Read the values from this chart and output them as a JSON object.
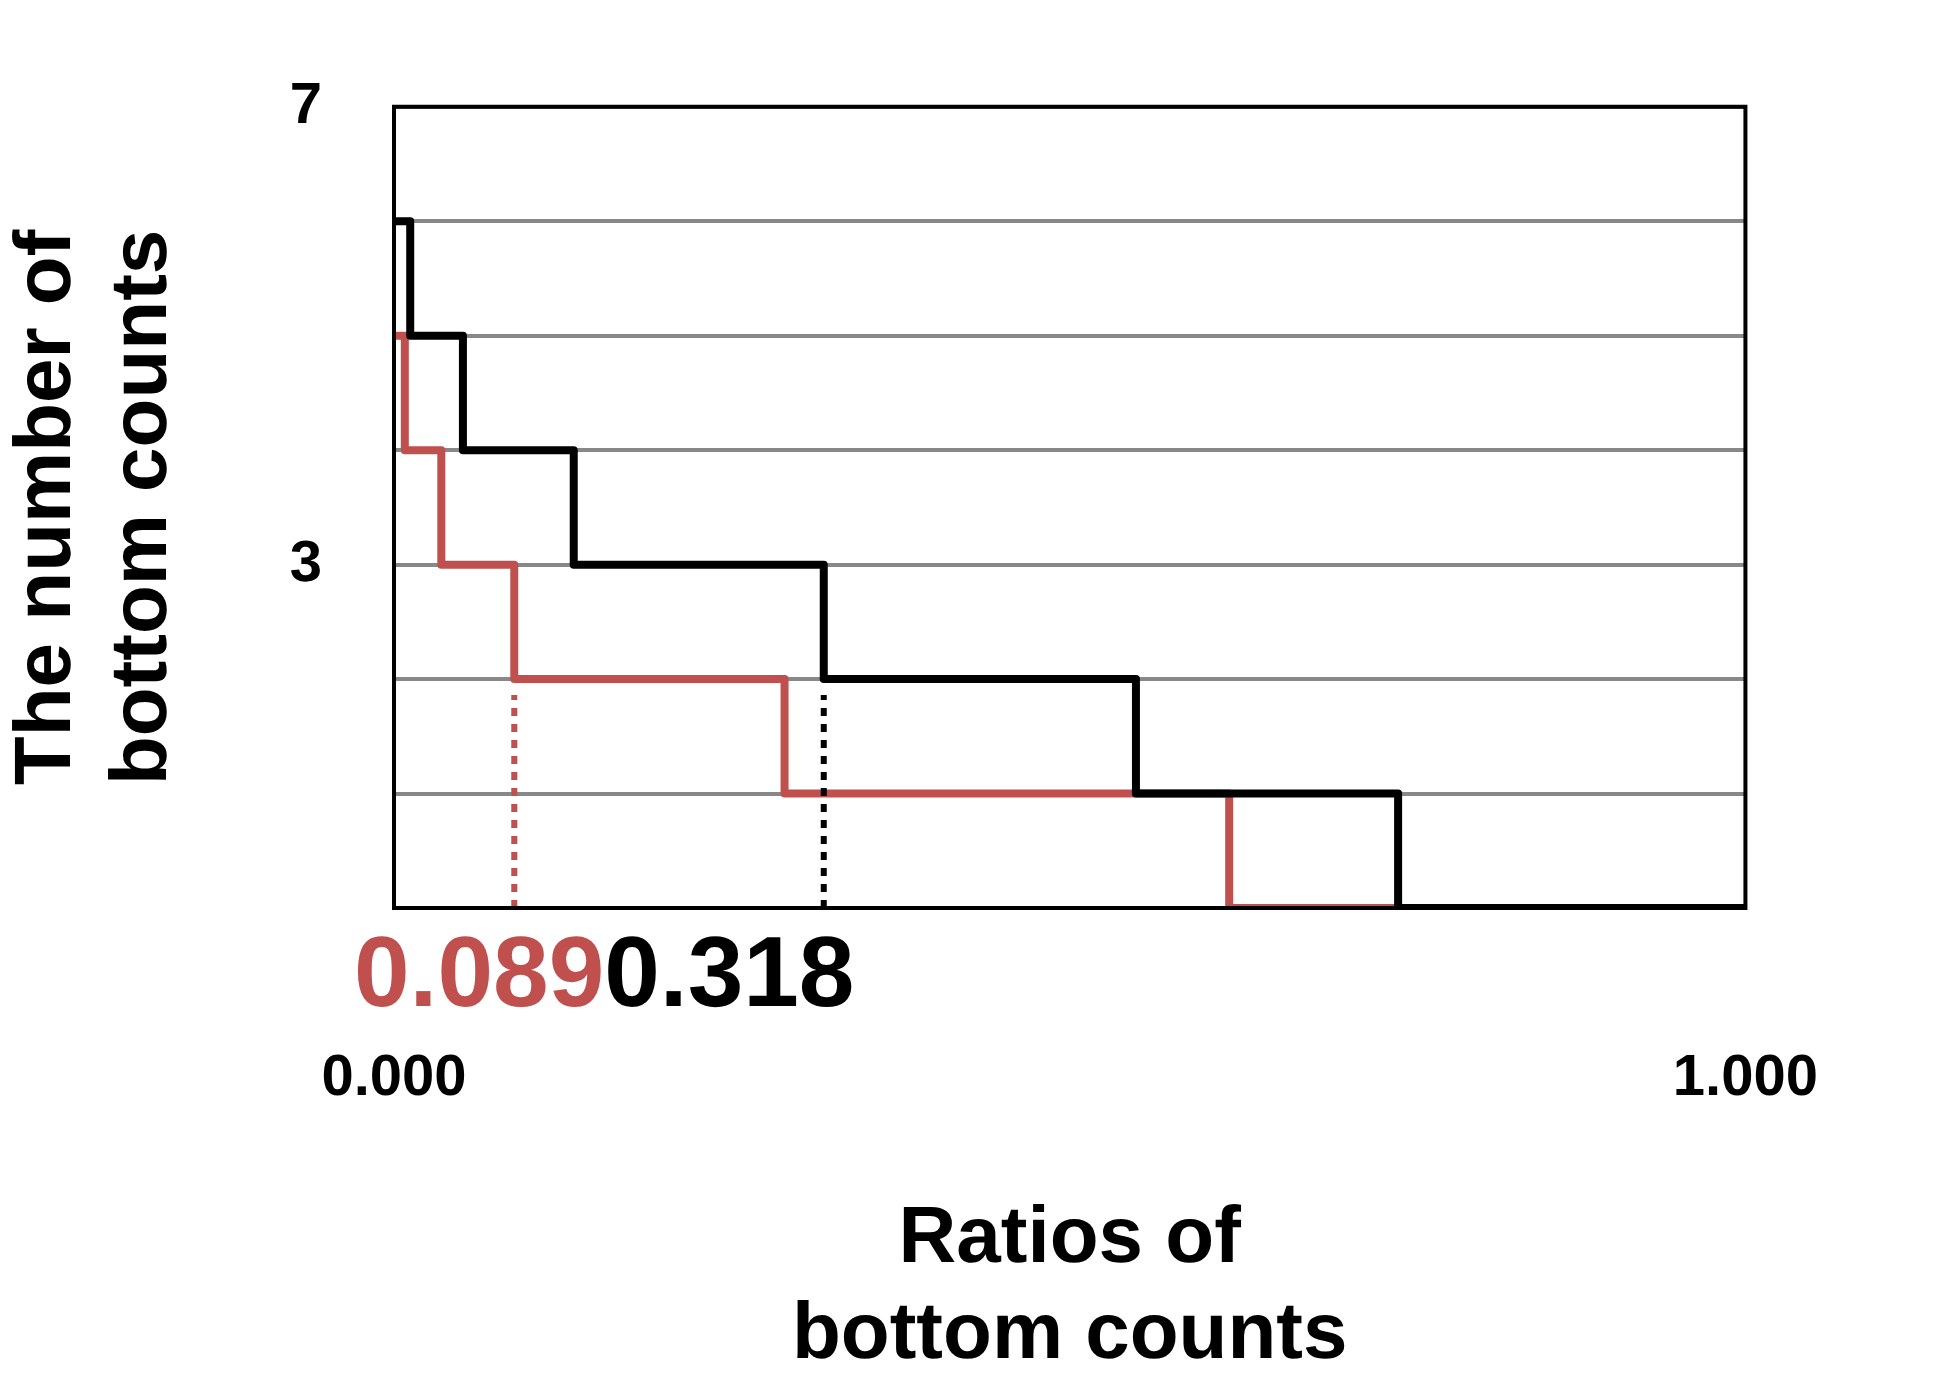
{
  "chart_data": {
    "type": "step",
    "xlabel": "Ratios of\nbottom counts",
    "ylabel": "The number of\nbottom counts",
    "series": [
      {
        "color": "#000000",
        "x": [
          0,
          0.012,
          0.051,
          0.133,
          0.318,
          0.549,
          0.743,
          1
        ],
        "values": [
          6,
          5,
          4,
          3,
          2,
          1,
          0,
          0
        ]
      },
      {
        "color": "#c0504d",
        "x": [
          0,
          0.008,
          0.035,
          0.089,
          0.289,
          0.618,
          0.743
        ],
        "values": [
          5,
          4,
          3,
          2,
          1,
          0,
          0
        ]
      }
    ],
    "xlim": [
      0,
      1
    ],
    "xticks": [
      {
        "value": 0,
        "label": "0.000"
      },
      {
        "value": 1,
        "label": "1.000"
      }
    ],
    "ylim": [
      0,
      7
    ],
    "yticks": [
      {
        "value": 0,
        "label": null
      },
      {
        "value": 1,
        "label": null
      },
      {
        "value": 2,
        "label": null
      },
      3,
      {
        "value": 4,
        "label": null
      },
      {
        "value": 5,
        "label": null
      },
      {
        "value": 6,
        "label": null
      },
      7
    ],
    "ref_lines": [
      {
        "axis": "x",
        "value": 0.089,
        "label": "0.089",
        "color": "#c0504d",
        "line_style": "dotted"
      },
      {
        "axis": "x",
        "value": 0.318,
        "label": "0.318",
        "color": "#000000",
        "line_style": "dotted"
      }
    ],
    "grid": "y",
    "legend": false
  }
}
